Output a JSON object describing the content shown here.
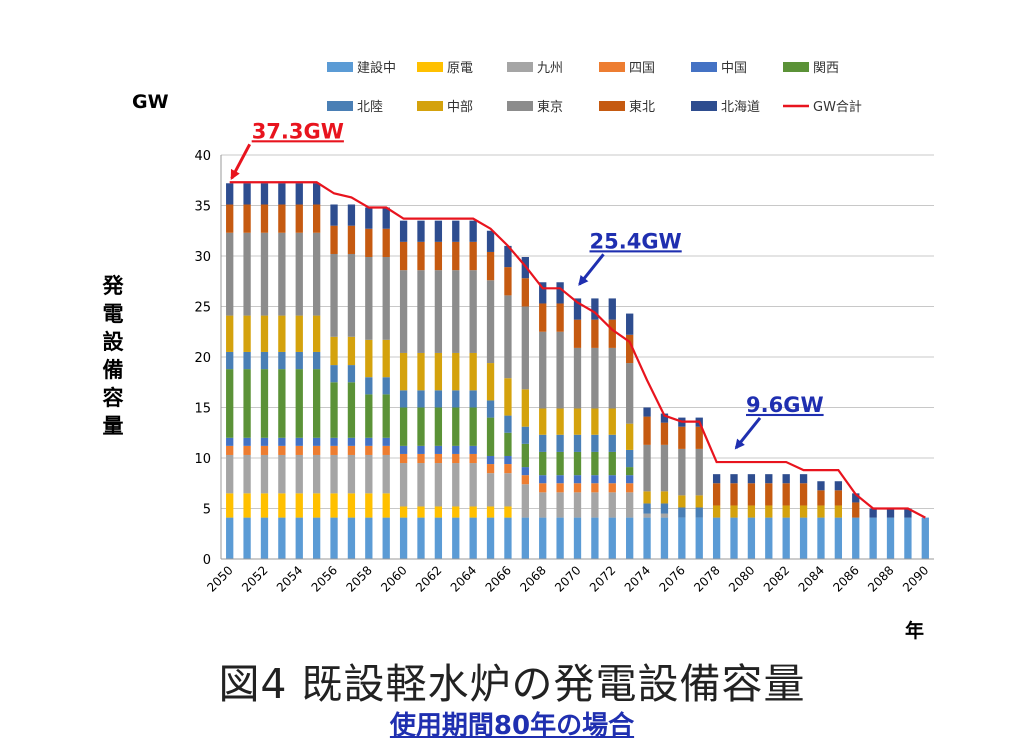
{
  "chart_data": {
    "type": "bar",
    "stacked": true,
    "xlabel": "年",
    "ylabel": "発電設備容量",
    "yunit": "GW",
    "ylim": [
      0,
      40
    ],
    "yticks": [
      0,
      5,
      10,
      15,
      20,
      25,
      30,
      35,
      40
    ],
    "grid": true,
    "legend_position": "top",
    "x": [
      2050,
      2051,
      2052,
      2053,
      2054,
      2055,
      2056,
      2057,
      2058,
      2059,
      2060,
      2061,
      2062,
      2063,
      2064,
      2065,
      2066,
      2067,
      2068,
      2069,
      2070,
      2071,
      2072,
      2073,
      2074,
      2075,
      2076,
      2077,
      2078,
      2079,
      2080,
      2081,
      2082,
      2083,
      2084,
      2085,
      2086,
      2087,
      2088,
      2089,
      2090
    ],
    "xticks": [
      "2050",
      "2052",
      "2054",
      "2056",
      "2058",
      "2060",
      "2062",
      "2064",
      "2066",
      "2068",
      "2070",
      "2072",
      "2074",
      "2076",
      "2078",
      "2080",
      "2082",
      "2084",
      "2086",
      "2088",
      "2090"
    ],
    "series": [
      {
        "name": "建設中",
        "color": "#5b9bd5",
        "values": [
          4.1,
          4.1,
          4.1,
          4.1,
          4.1,
          4.1,
          4.1,
          4.1,
          4.1,
          4.1,
          4.1,
          4.1,
          4.1,
          4.1,
          4.1,
          4.1,
          4.1,
          4.1,
          4.1,
          4.1,
          4.1,
          4.1,
          4.1,
          4.1,
          4.1,
          4.1,
          4.1,
          4.1,
          4.1,
          4.1,
          4.1,
          4.1,
          4.1,
          4.1,
          4.1,
          4.1,
          4.1,
          4.1,
          4.1,
          4.1,
          4.1
        ]
      },
      {
        "name": "原電",
        "color": "#ffc000",
        "values": [
          2.4,
          2.4,
          2.4,
          2.4,
          2.4,
          2.4,
          2.4,
          2.4,
          2.4,
          2.4,
          1.1,
          1.1,
          1.1,
          1.1,
          1.1,
          1.1,
          1.1,
          0,
          0,
          0,
          0,
          0,
          0,
          0,
          0,
          0,
          0,
          0,
          0,
          0,
          0,
          0,
          0,
          0,
          0,
          0,
          0,
          0,
          0,
          0,
          0
        ]
      },
      {
        "name": "九州",
        "color": "#a5a5a5",
        "values": [
          3.8,
          3.8,
          3.8,
          3.8,
          3.8,
          3.8,
          3.8,
          3.8,
          3.8,
          3.8,
          4.3,
          4.3,
          4.3,
          4.3,
          4.3,
          3.3,
          3.3,
          3.3,
          2.5,
          2.5,
          2.5,
          2.5,
          2.5,
          2.5,
          0.4,
          0.4,
          0,
          0,
          0,
          0,
          0,
          0,
          0,
          0,
          0,
          0,
          0,
          0,
          0,
          0,
          0
        ]
      },
      {
        "name": "四国",
        "color": "#ed7d31",
        "values": [
          0.9,
          0.9,
          0.9,
          0.9,
          0.9,
          0.9,
          0.9,
          0.9,
          0.9,
          0.9,
          0.9,
          0.9,
          0.9,
          0.9,
          0.9,
          0.9,
          0.9,
          0.9,
          0.9,
          0.9,
          0.9,
          0.9,
          0.9,
          0.9,
          0,
          0,
          0,
          0,
          0,
          0,
          0,
          0,
          0,
          0,
          0,
          0,
          0,
          0,
          0,
          0,
          0
        ]
      },
      {
        "name": "中国",
        "color": "#4472c4",
        "values": [
          0.8,
          0.8,
          0.8,
          0.8,
          0.8,
          0.8,
          0.8,
          0.8,
          0.8,
          0.8,
          0.8,
          0.8,
          0.8,
          0.8,
          0.8,
          0.8,
          0.8,
          0.8,
          0.8,
          0.8,
          0.8,
          0.8,
          0.8,
          0.8,
          0,
          0,
          0,
          0,
          0,
          0,
          0,
          0,
          0,
          0,
          0,
          0,
          0,
          0,
          0,
          0,
          0
        ]
      },
      {
        "name": "関西",
        "color": "#5b9237",
        "values": [
          6.8,
          6.8,
          6.8,
          6.8,
          6.8,
          6.8,
          5.5,
          5.5,
          4.3,
          4.3,
          3.8,
          3.8,
          3.8,
          3.8,
          3.8,
          3.8,
          2.3,
          2.3,
          2.3,
          2.3,
          2.3,
          2.3,
          2.3,
          0.8,
          0,
          0,
          0,
          0,
          0,
          0,
          0,
          0,
          0,
          0,
          0,
          0,
          0,
          0,
          0,
          0,
          0
        ]
      },
      {
        "name": "北陸",
        "color": "#4a7fb5",
        "values": [
          1.7,
          1.7,
          1.7,
          1.7,
          1.7,
          1.7,
          1.7,
          1.7,
          1.7,
          1.7,
          1.7,
          1.7,
          1.7,
          1.7,
          1.7,
          1.7,
          1.7,
          1.7,
          1.7,
          1.7,
          1.7,
          1.7,
          1.7,
          1.7,
          1.0,
          1.0,
          1.0,
          1.0,
          0,
          0,
          0,
          0,
          0,
          0,
          0,
          0,
          0,
          0,
          0,
          0,
          0
        ]
      },
      {
        "name": "中部",
        "color": "#d4a20d",
        "values": [
          3.6,
          3.6,
          3.6,
          3.6,
          3.6,
          3.6,
          2.8,
          2.8,
          3.7,
          3.7,
          3.7,
          3.7,
          3.7,
          3.7,
          3.7,
          3.7,
          3.7,
          3.7,
          2.6,
          2.6,
          2.6,
          2.6,
          2.6,
          2.6,
          1.2,
          1.2,
          1.2,
          1.2,
          1.2,
          1.2,
          1.2,
          1.2,
          1.2,
          1.2,
          1.2,
          1.2,
          0,
          0,
          0,
          0,
          0
        ]
      },
      {
        "name": "東京",
        "color": "#8c8c8c",
        "values": [
          8.2,
          8.2,
          8.2,
          8.2,
          8.2,
          8.2,
          8.2,
          8.2,
          8.2,
          8.2,
          8.2,
          8.2,
          8.2,
          8.2,
          8.2,
          8.2,
          8.2,
          8.2,
          7.6,
          7.6,
          6.0,
          6.0,
          6.0,
          6.0,
          4.6,
          4.6,
          4.6,
          4.6,
          0,
          0,
          0,
          0,
          0,
          0,
          0,
          0,
          0,
          0,
          0,
          0,
          0
        ]
      },
      {
        "name": "東北",
        "color": "#c55a11",
        "values": [
          2.8,
          2.8,
          2.8,
          2.8,
          2.8,
          2.8,
          2.8,
          2.8,
          2.8,
          2.8,
          2.8,
          2.8,
          2.8,
          2.8,
          2.8,
          2.8,
          2.8,
          2.8,
          2.8,
          2.8,
          2.8,
          2.8,
          2.8,
          2.8,
          2.8,
          2.2,
          2.2,
          2.2,
          2.2,
          2.2,
          2.2,
          2.2,
          2.2,
          2.2,
          1.5,
          1.5,
          1.5,
          0,
          0,
          0,
          0
        ]
      },
      {
        "name": "北海道",
        "color": "#2e4d8f",
        "values": [
          2.1,
          2.1,
          2.1,
          2.1,
          2.1,
          2.1,
          2.1,
          2.1,
          2.1,
          2.1,
          2.1,
          2.1,
          2.1,
          2.1,
          2.1,
          2.1,
          2.1,
          2.1,
          2.1,
          2.1,
          2.1,
          2.1,
          2.1,
          2.1,
          0.9,
          0.9,
          0.9,
          0.9,
          0.9,
          0.9,
          0.9,
          0.9,
          0.9,
          0.9,
          0.9,
          0.9,
          0.9,
          0.9,
          0.9,
          0.9,
          0
        ]
      }
    ],
    "total_line": {
      "name": "GW合計",
      "color": "#e8141e",
      "values": [
        37.3,
        37.3,
        37.3,
        37.3,
        37.3,
        37.3,
        36.2,
        35.8,
        34.8,
        34.8,
        33.7,
        33.7,
        33.7,
        33.7,
        33.7,
        32.7,
        31.0,
        29.0,
        26.8,
        26.8,
        25.4,
        24.4,
        22.7,
        21.5,
        17.7,
        14.2,
        13.6,
        13.6,
        9.6,
        9.6,
        9.6,
        9.6,
        9.6,
        8.8,
        8.8,
        8.8,
        6.4,
        5.0,
        5.0,
        5.0,
        4.1
      ]
    },
    "annotations": [
      {
        "text": "37.3GW",
        "color": "#e8141e",
        "x": 2050,
        "y": 37.3
      },
      {
        "text": "25.4GW",
        "color": "#1f2fb0",
        "x": 2070,
        "y": 26.8
      },
      {
        "text": "9.6GW",
        "color": "#1f2fb0",
        "x": 2079,
        "y": 10.6
      }
    ]
  },
  "caption": {
    "title": "図4  既設軽水炉の発電設備容量",
    "subtitle": "使用期間80年の場合"
  }
}
